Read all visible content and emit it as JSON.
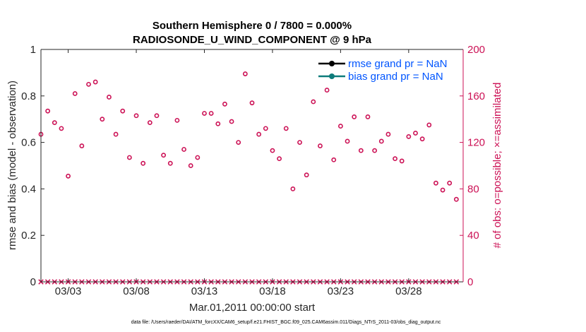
{
  "chart_data": {
    "type": "scatter",
    "title": [
      "Southern Hemisphere 0 / 7800 = 0.000%",
      "RADIOSONDE_U_WIND_COMPONENT @ 9 hPa"
    ],
    "xlabel": "Mar.01,2011 00:00:00 start",
    "ylabel_left": "rmse and bias (model - observation)",
    "ylabel_right": "# of obs: o=possible; ×=assimilated",
    "footnote": "data file: /Users/raeder/DAI/ATM_forcXX/CAM6_setup/f.e21.FHIST_BGC.f09_025.CAM6assim.011/Diags_NTrS_2011-03/obs_diag_output.nc",
    "xlim": [
      1,
      32
    ],
    "x_ticks": [
      3,
      8,
      13,
      18,
      23,
      28
    ],
    "x_tick_labels": [
      "03/03",
      "03/08",
      "03/13",
      "03/18",
      "03/23",
      "03/28"
    ],
    "ylim_left": [
      0,
      1
    ],
    "y_ticks_left": [
      0,
      0.2,
      0.4,
      0.6,
      0.8,
      1
    ],
    "y_tick_labels_left": [
      "0",
      "0.2",
      "0.4",
      "0.6",
      "0.8",
      "1"
    ],
    "ylim_right": [
      0,
      200
    ],
    "y_ticks_right": [
      0,
      40,
      80,
      120,
      160,
      200
    ],
    "y_tick_labels_right": [
      "0",
      "40",
      "80",
      "120",
      "160",
      "200"
    ],
    "legend": [
      "rmse grand pr = NaN",
      "bias grand pr = NaN"
    ],
    "legend_position": "top-right",
    "legend_colors": [
      "#000000",
      "#0e7c7b"
    ],
    "marker_color": "#cc1155",
    "axis_right_color": "#cc1155",
    "series": [
      {
        "name": "possible",
        "marker": "o",
        "x": [
          1,
          1.5,
          2,
          2.5,
          3,
          3.5,
          4,
          4.5,
          5,
          5.5,
          6,
          6.5,
          7,
          7.5,
          8,
          8.5,
          9,
          9.5,
          10,
          10.5,
          11,
          11.5,
          12,
          12.5,
          13,
          13.5,
          14,
          14.5,
          15,
          15.5,
          16,
          16.5,
          17,
          17.5,
          18,
          18.5,
          19,
          19.5,
          20,
          20.5,
          21,
          21.5,
          22,
          22.5,
          23,
          23.5,
          24,
          24.5,
          25,
          25.5,
          26,
          26.5,
          27,
          27.5,
          28,
          28.5,
          29,
          29.5,
          30,
          30.5,
          31,
          31.5
        ],
        "values": [
          127,
          147,
          137,
          132,
          91,
          162,
          117,
          170,
          172,
          140,
          159,
          127,
          147,
          107,
          143,
          102,
          137,
          143,
          109,
          102,
          139,
          114,
          100,
          107,
          145,
          145,
          136,
          153,
          138,
          120,
          179,
          154,
          127,
          132,
          113,
          106,
          132,
          80,
          120,
          92,
          155,
          117,
          165,
          105,
          134,
          121,
          142,
          113,
          142,
          113,
          121,
          127,
          106,
          104,
          125,
          128,
          123,
          135,
          85,
          79,
          85,
          71
        ]
      },
      {
        "name": "assimilated",
        "marker": "x",
        "x": [
          1,
          1.5,
          2,
          2.5,
          3,
          3.5,
          4,
          4.5,
          5,
          5.5,
          6,
          6.5,
          7,
          7.5,
          8,
          8.5,
          9,
          9.5,
          10,
          10.5,
          11,
          11.5,
          12,
          12.5,
          13,
          13.5,
          14,
          14.5,
          15,
          15.5,
          16,
          16.5,
          17,
          17.5,
          18,
          18.5,
          19,
          19.5,
          20,
          20.5,
          21,
          21.5,
          22,
          22.5,
          23,
          23.5,
          24,
          24.5,
          25,
          25.5,
          26,
          26.5,
          27,
          27.5,
          28,
          28.5,
          29,
          29.5,
          30,
          30.5,
          31,
          31.5
        ],
        "values": [
          0,
          0,
          0,
          0,
          0,
          0,
          0,
          0,
          0,
          0,
          0,
          0,
          0,
          0,
          0,
          0,
          0,
          0,
          0,
          0,
          0,
          0,
          0,
          0,
          0,
          0,
          0,
          0,
          0,
          0,
          0,
          0,
          0,
          0,
          0,
          0,
          0,
          0,
          0,
          0,
          0,
          0,
          0,
          0,
          0,
          0,
          0,
          0,
          0,
          0,
          0,
          0,
          0,
          0,
          0,
          0,
          0,
          0,
          0,
          0,
          0,
          0
        ]
      }
    ]
  }
}
